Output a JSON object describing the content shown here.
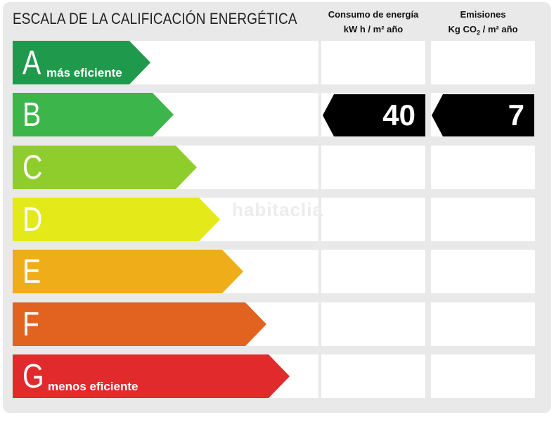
{
  "title": "ESCALA DE LA CALIFICACIÓN ENERGÉTICA",
  "columns": {
    "consumo": {
      "line1": "Consumo de energía",
      "line2": "kW h / m² año"
    },
    "emisiones": {
      "line1": "Emisiones",
      "line2_pre": "Kg CO",
      "line2_sub": "2",
      "line2_post": " / m² año"
    }
  },
  "ratings": [
    {
      "letter": "A",
      "caption": "más eficiente",
      "color": "#1f9a4c"
    },
    {
      "letter": "B",
      "caption": "",
      "color": "#3cb54a"
    },
    {
      "letter": "C",
      "caption": "",
      "color": "#8fcd2d"
    },
    {
      "letter": "D",
      "caption": "",
      "color": "#e4e91a"
    },
    {
      "letter": "E",
      "caption": "",
      "color": "#f0ad1a"
    },
    {
      "letter": "F",
      "caption": "",
      "color": "#e1631f"
    },
    {
      "letter": "G",
      "caption": "menos eficiente",
      "color": "#e12a2b"
    }
  ],
  "current": {
    "rating": "B",
    "consumo": "40",
    "emisiones": "7"
  },
  "watermark": "habitaclia"
}
